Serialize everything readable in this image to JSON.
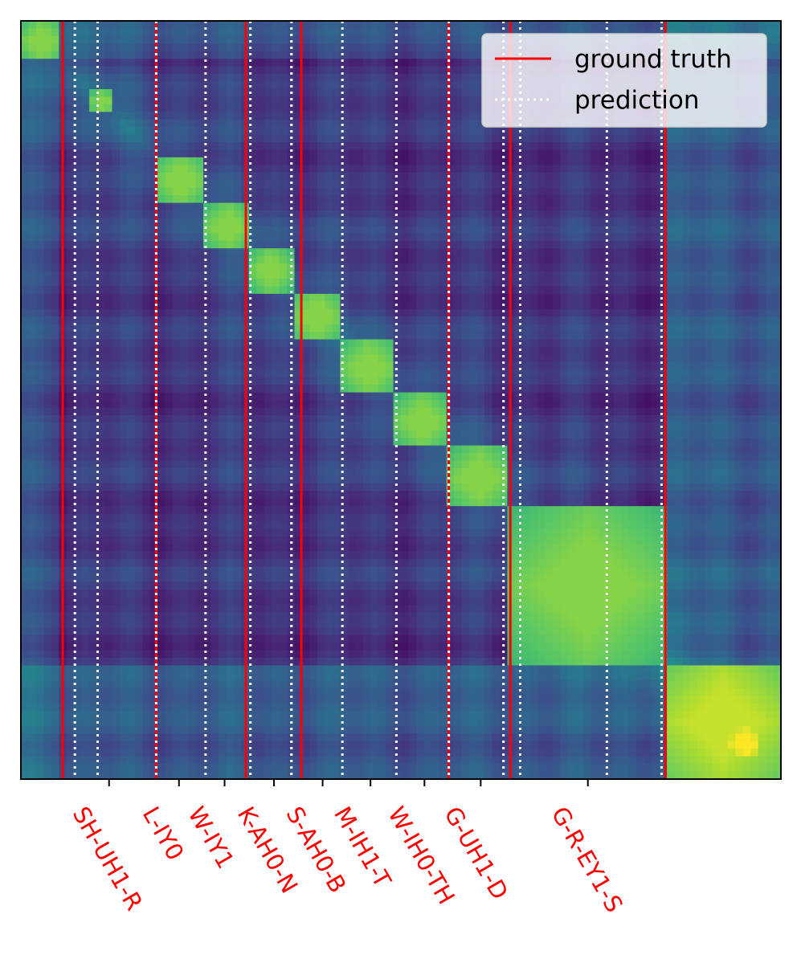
{
  "chart_data": {
    "type": "heatmap",
    "title": "",
    "xlabel": "",
    "ylabel": "",
    "colormap": "viridis",
    "grid": false,
    "legend_position": "top-right",
    "segments": [
      {
        "label": "SH-UH1-R",
        "start": 0.093,
        "end": 0.122,
        "tick": 0.116
      },
      {
        "label": "L-IY0",
        "start": 0.178,
        "end": 0.243,
        "tick": 0.208
      },
      {
        "label": "W-IY1",
        "start": 0.243,
        "end": 0.302,
        "tick": 0.268
      },
      {
        "label": "K-AH0-N",
        "start": 0.302,
        "end": 0.356,
        "tick": 0.333
      },
      {
        "label": "S-AH0-B",
        "start": 0.356,
        "end": 0.423,
        "tick": 0.397
      },
      {
        "label": "M-IH1-T",
        "start": 0.423,
        "end": 0.494,
        "tick": 0.46
      },
      {
        "label": "W-IH0-TH",
        "start": 0.494,
        "end": 0.563,
        "tick": 0.531
      },
      {
        "label": "G-UH1-D",
        "start": 0.563,
        "end": 0.644,
        "tick": 0.605
      },
      {
        "label": "G-R-EY1-S",
        "start": 0.644,
        "end": 0.848,
        "tick": 0.746
      }
    ],
    "extra_blocks": [
      {
        "start": 0.0,
        "end": 0.055,
        "intensity": 0.82
      },
      {
        "start": 0.848,
        "end": 1.0,
        "intensity": 0.92
      },
      {
        "start": 0.93,
        "end": 0.975,
        "intensity": 1.0
      }
    ],
    "ground_truth_boundaries": [
      0.055,
      0.178,
      0.296,
      0.369,
      0.563,
      0.644,
      0.848
    ],
    "prediction_boundaries": [
      0.071,
      0.101,
      0.178,
      0.243,
      0.302,
      0.356,
      0.423,
      0.494,
      0.563,
      0.635,
      0.657,
      0.771,
      0.843
    ],
    "series": [
      {
        "name": "ground truth",
        "color": "#ff0000",
        "style": "solid"
      },
      {
        "name": "prediction",
        "color": "#ffffff",
        "style": "dotted"
      }
    ],
    "tick_label_color": "#ff0000"
  }
}
